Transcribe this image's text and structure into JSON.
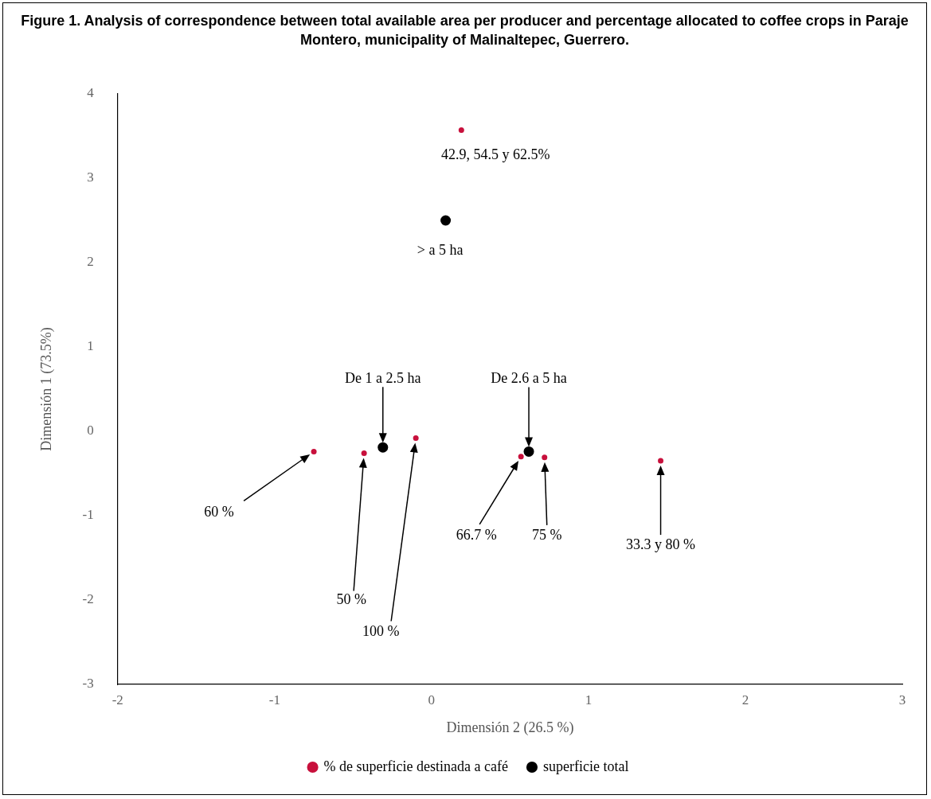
{
  "chart_data": {
    "type": "scatter",
    "title": "Figure 1. Analysis of correspondence between total available area per producer and percentage allocated to coffee crops in Paraje Montero, municipality of Malinaltepec, Guerrero.",
    "xlabel": "Dimensión 2 (26.5 %)",
    "ylabel": "Dimensión 1 (73.5%)",
    "series": [
      {
        "name": "% de superficie destinada a café",
        "color": "#c8103c",
        "x": [
          0.19,
          -0.75,
          -0.43,
          -0.1,
          0.57,
          0.72,
          1.46
        ],
        "values": [
          3.57,
          -0.24,
          -0.26,
          -0.08,
          -0.3,
          -0.31,
          -0.35
        ]
      },
      {
        "name": "superficie total",
        "color": "#000000",
        "x": [
          0.09,
          -0.31,
          0.62
        ],
        "values": [
          2.5,
          -0.19,
          -0.24
        ]
      }
    ],
    "annotations": [
      {
        "text": "42.9, 54.5 y 62.5%",
        "x": 0.19,
        "y": 3.57
      },
      {
        "text": "> a 5 ha",
        "x": 0.09,
        "y": 2.5
      },
      "De 1 a 2.5 ha",
      "De 2.6 a 5 ha",
      "60 %",
      "50 %",
      "100 %",
      "66.7 %",
      "75 %",
      "33.3 y 80 %"
    ],
    "xlim": [
      -2,
      3
    ],
    "xticks": [
      -2,
      -1,
      0,
      1,
      2,
      3
    ],
    "ylim": [
      -3,
      4
    ],
    "yticks": [
      -3,
      -2,
      -1,
      0,
      1,
      2,
      3,
      4
    ],
    "grid": false,
    "legend": "bottom",
    "marker": "circle"
  }
}
